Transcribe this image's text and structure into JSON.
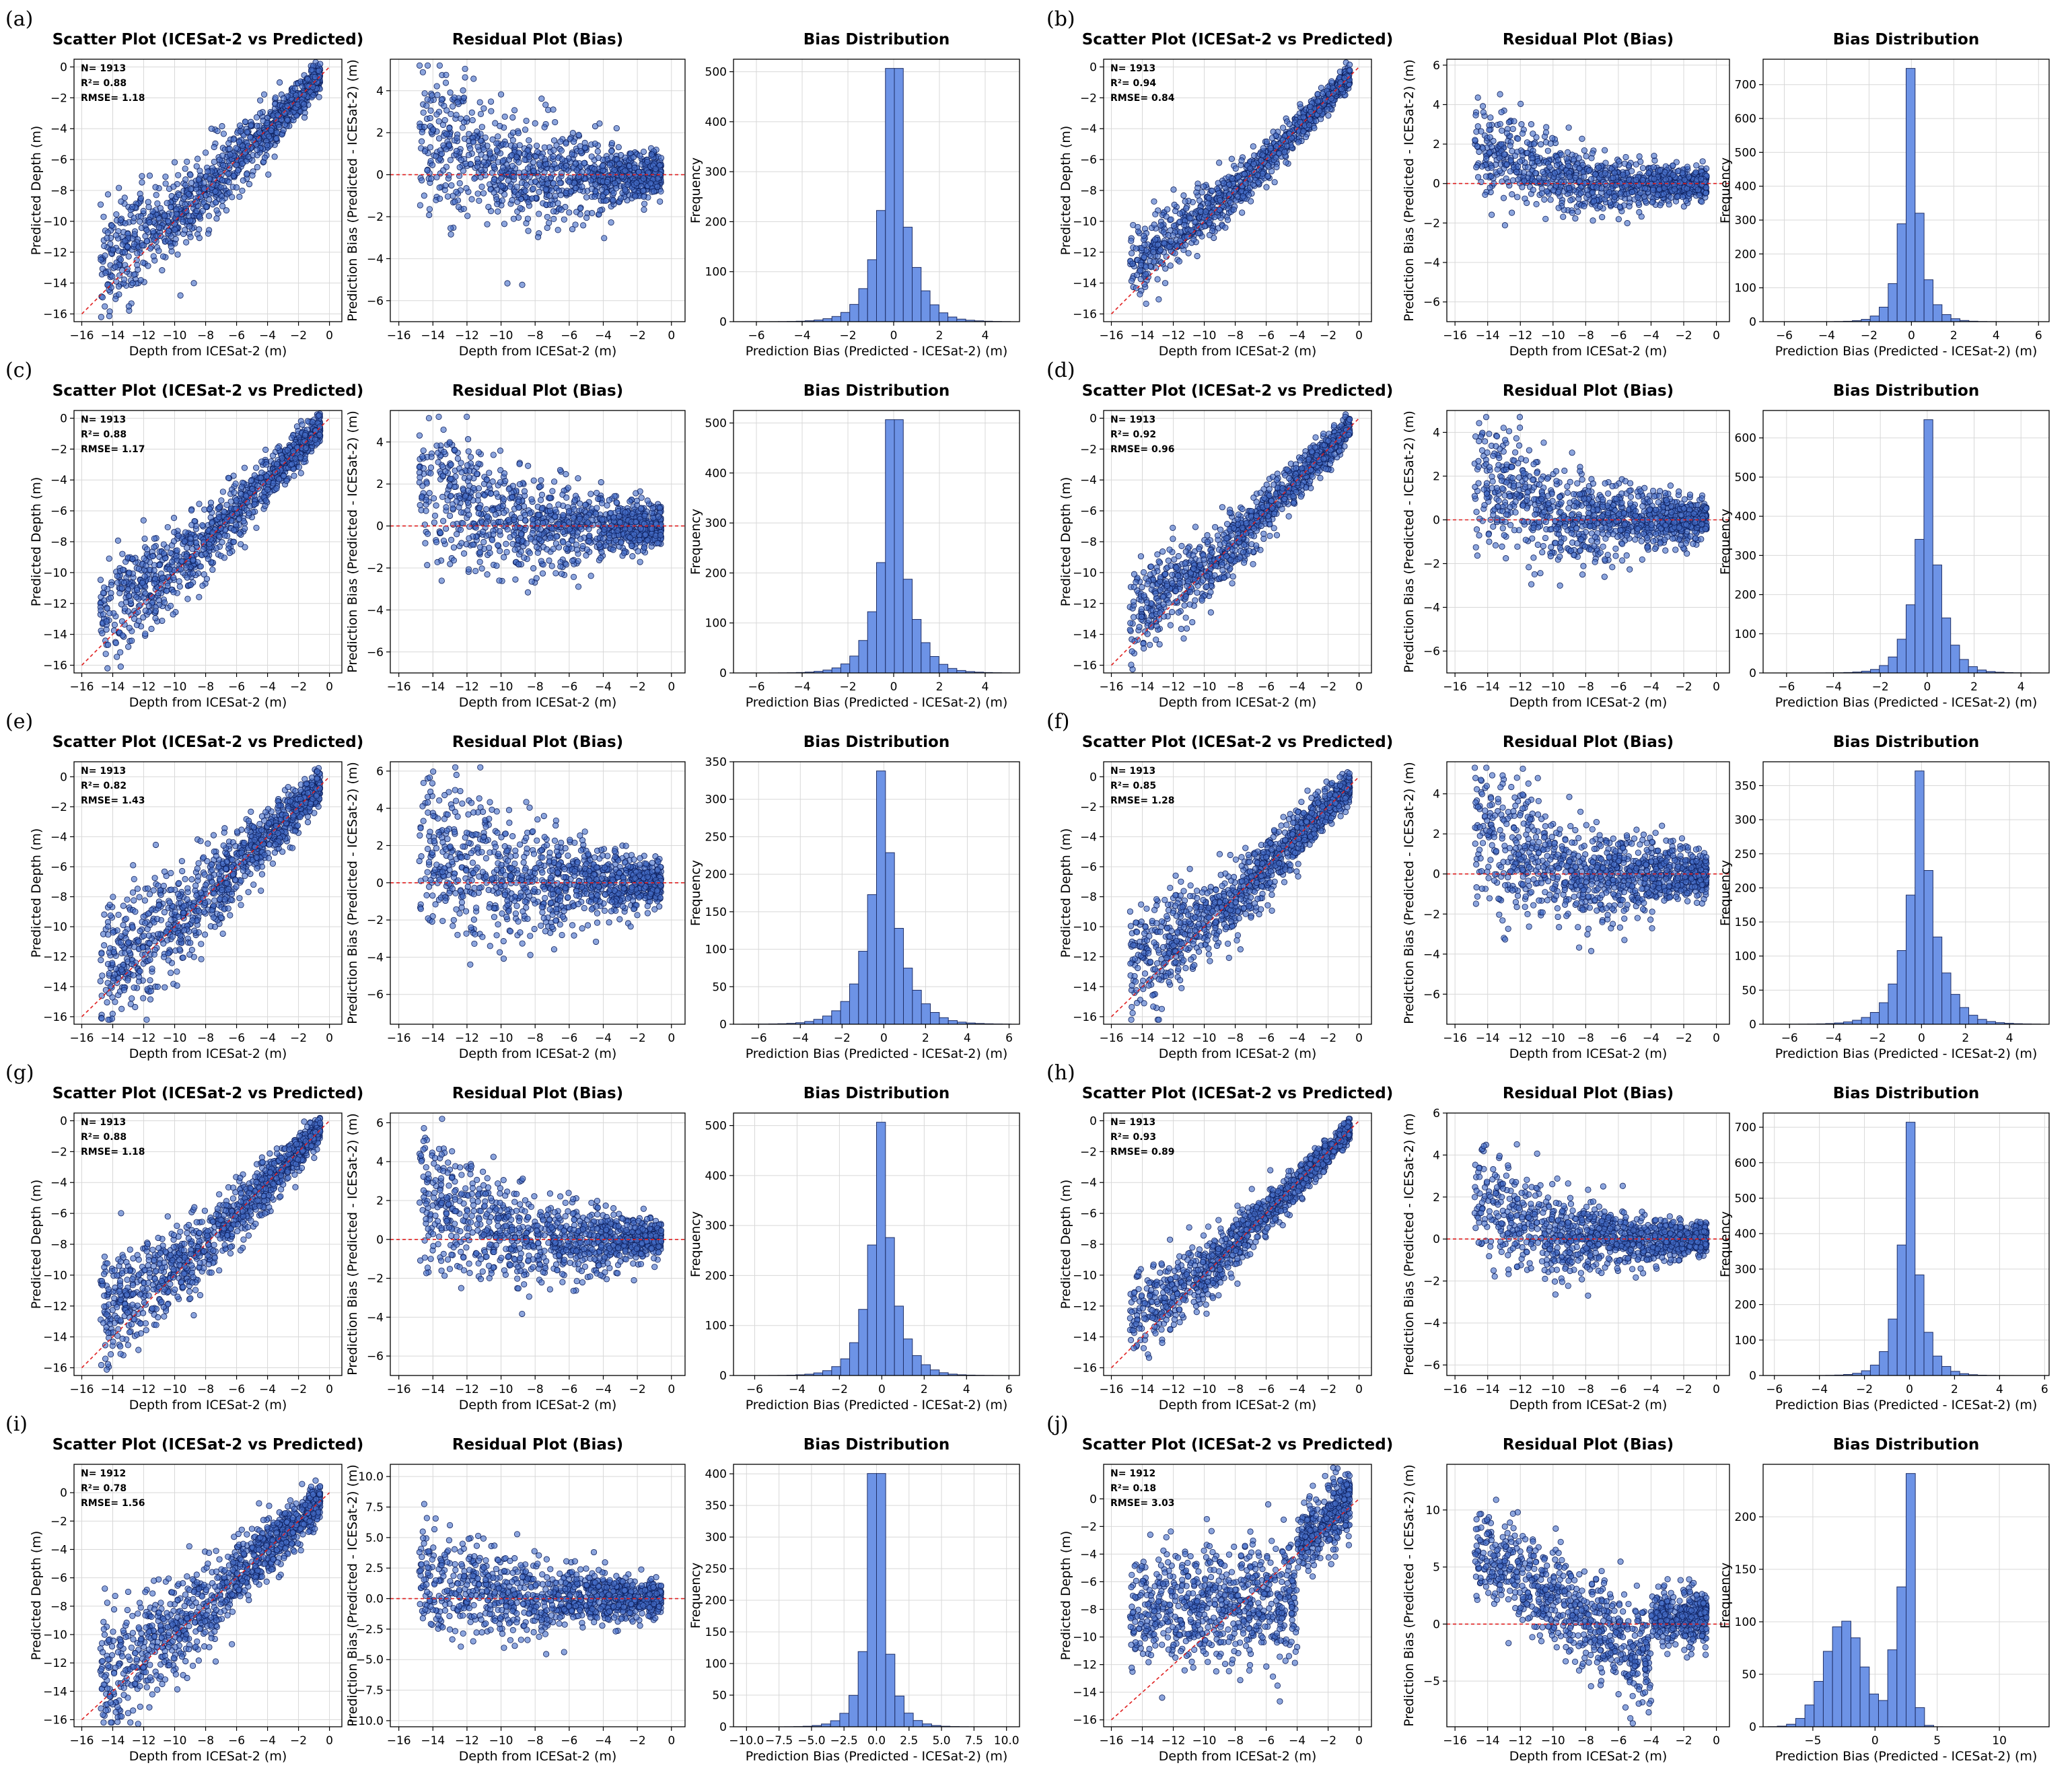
{
  "chart_data": [
    {
      "label": "(a)",
      "n": "N= 1913",
      "r2": "R²= 0.88",
      "rmse": "RMSE= 1.18",
      "rmse_value": 1.18,
      "resid_ylim": [
        -7,
        5.5
      ],
      "resid_ticks": [
        -6,
        -4,
        -2,
        0,
        2,
        4
      ],
      "hist_xlim": [
        -7,
        5.5
      ],
      "hist_xticks": [
        -6,
        -4,
        -2,
        0,
        2,
        4
      ],
      "hist_ylim": [
        0,
        525
      ],
      "hist_yticks": [
        0,
        100,
        200,
        300,
        400,
        500
      ],
      "scatter_ylim": [
        -16.5,
        0.5
      ],
      "scatter_yticks": [
        -16,
        -14,
        -12,
        -10,
        -8,
        -6,
        -4,
        -2,
        0
      ]
    },
    {
      "label": "(b)",
      "n": "N= 1913",
      "r2": "R²= 0.94",
      "rmse": "RMSE= 0.84",
      "rmse_value": 0.84,
      "resid_ylim": [
        -7,
        6.3
      ],
      "resid_ticks": [
        -6,
        -4,
        -2,
        0,
        2,
        4,
        6
      ],
      "hist_xlim": [
        -7,
        6.5
      ],
      "hist_xticks": [
        -6,
        -4,
        -2,
        0,
        2,
        4,
        6
      ],
      "hist_ylim": [
        0,
        775
      ],
      "hist_yticks": [
        0,
        100,
        200,
        300,
        400,
        500,
        600,
        700
      ],
      "scatter_ylim": [
        -16.5,
        0.5
      ],
      "scatter_yticks": [
        -16,
        -14,
        -12,
        -10,
        -8,
        -6,
        -4,
        -2,
        0
      ]
    },
    {
      "label": "(c)",
      "n": "N= 1913",
      "r2": "R²= 0.88",
      "rmse": "RMSE= 1.17",
      "rmse_value": 1.17,
      "resid_ylim": [
        -7,
        5.5
      ],
      "resid_ticks": [
        -6,
        -4,
        -2,
        0,
        2,
        4
      ],
      "hist_xlim": [
        -7,
        5.5
      ],
      "hist_xticks": [
        -6,
        -4,
        -2,
        0,
        2,
        4
      ],
      "hist_ylim": [
        0,
        525
      ],
      "hist_yticks": [
        0,
        100,
        200,
        300,
        400,
        500
      ],
      "scatter_ylim": [
        -16.5,
        0.5
      ],
      "scatter_yticks": [
        -16,
        -14,
        -12,
        -10,
        -8,
        -6,
        -4,
        -2,
        0
      ]
    },
    {
      "label": "(d)",
      "n": "N= 1913",
      "r2": "R²= 0.92",
      "rmse": "RMSE= 0.96",
      "rmse_value": 0.96,
      "resid_ylim": [
        -7,
        5
      ],
      "resid_ticks": [
        -6,
        -4,
        -2,
        0,
        2,
        4
      ],
      "hist_xlim": [
        -7,
        5.2
      ],
      "hist_xticks": [
        -6,
        -4,
        -2,
        0,
        2,
        4
      ],
      "hist_ylim": [
        0,
        670
      ],
      "hist_yticks": [
        0,
        100,
        200,
        300,
        400,
        500,
        600
      ],
      "scatter_ylim": [
        -16.5,
        0.5
      ],
      "scatter_yticks": [
        -16,
        -14,
        -12,
        -10,
        -8,
        -6,
        -4,
        -2,
        0
      ]
    },
    {
      "label": "(e)",
      "n": "N= 1913",
      "r2": "R²= 0.82",
      "rmse": "RMSE= 1.43",
      "rmse_value": 1.43,
      "resid_ylim": [
        -7.6,
        6.5
      ],
      "resid_ticks": [
        -6,
        -4,
        -2,
        0,
        2,
        4,
        6
      ],
      "hist_xlim": [
        -7.2,
        6.5
      ],
      "hist_xticks": [
        -6,
        -4,
        -2,
        0,
        2,
        4,
        6
      ],
      "hist_ylim": [
        0,
        350
      ],
      "hist_yticks": [
        0,
        50,
        100,
        150,
        200,
        250,
        300,
        350
      ],
      "scatter_ylim": [
        -16.5,
        1
      ],
      "scatter_yticks": [
        -16,
        -14,
        -12,
        -10,
        -8,
        -6,
        -4,
        -2,
        0
      ]
    },
    {
      "label": "(f)",
      "n": "N= 1913",
      "r2": "R²= 0.85",
      "rmse": "RMSE= 1.28",
      "rmse_value": 1.28,
      "resid_ylim": [
        -7.5,
        5.6
      ],
      "resid_ticks": [
        -6,
        -4,
        -2,
        0,
        2,
        4
      ],
      "hist_xlim": [
        -7.2,
        5.8
      ],
      "hist_xticks": [
        -6,
        -4,
        -2,
        0,
        2,
        4
      ],
      "hist_ylim": [
        0,
        385
      ],
      "hist_yticks": [
        0,
        50,
        100,
        150,
        200,
        250,
        300,
        350
      ],
      "scatter_ylim": [
        -16.5,
        1
      ],
      "scatter_yticks": [
        -16,
        -14,
        -12,
        -10,
        -8,
        -6,
        -4,
        -2,
        0
      ]
    },
    {
      "label": "(g)",
      "n": "N= 1913",
      "r2": "R²= 0.88",
      "rmse": "RMSE= 1.18",
      "rmse_value": 1.18,
      "resid_ylim": [
        -7,
        6.5
      ],
      "resid_ticks": [
        -6,
        -4,
        -2,
        0,
        2,
        4,
        6
      ],
      "hist_xlim": [
        -7,
        6.5
      ],
      "hist_xticks": [
        -6,
        -4,
        -2,
        0,
        2,
        4,
        6
      ],
      "hist_ylim": [
        0,
        525
      ],
      "hist_yticks": [
        0,
        100,
        200,
        300,
        400,
        500
      ],
      "scatter_ylim": [
        -16.5,
        0.5
      ],
      "scatter_yticks": [
        -16,
        -14,
        -12,
        -10,
        -8,
        -6,
        -4,
        -2,
        0
      ]
    },
    {
      "label": "(h)",
      "n": "N= 1913",
      "r2": "R²= 0.93",
      "rmse": "RMSE= 0.89",
      "rmse_value": 0.89,
      "resid_ylim": [
        -6.5,
        6
      ],
      "resid_ticks": [
        -6,
        -4,
        -2,
        0,
        2,
        4,
        6
      ],
      "hist_xlim": [
        -6.5,
        6.2
      ],
      "hist_xticks": [
        -6,
        -4,
        -2,
        0,
        2,
        4,
        6
      ],
      "hist_ylim": [
        0,
        740
      ],
      "hist_yticks": [
        0,
        100,
        200,
        300,
        400,
        500,
        600,
        700
      ],
      "scatter_ylim": [
        -16.5,
        0.5
      ],
      "scatter_yticks": [
        -16,
        -14,
        -12,
        -10,
        -8,
        -6,
        -4,
        -2,
        0
      ]
    },
    {
      "label": "(i)",
      "n": "N= 1912",
      "r2": "R²= 0.78",
      "rmse": "RMSE= 1.56",
      "rmse_value": 1.56,
      "resid_ylim": [
        -10.5,
        11
      ],
      "resid_ticks": [
        -10,
        -7.5,
        -5,
        -2.5,
        0,
        2.5,
        5,
        7.5,
        10
      ],
      "resid_fmt": "fixed1",
      "hist_xlim": [
        -11,
        11
      ],
      "hist_xticks": [
        -10,
        -7.5,
        -5,
        -2.5,
        0,
        2.5,
        5,
        7.5,
        10
      ],
      "hist_fmt": "fixed1",
      "hist_ylim": [
        0,
        415
      ],
      "hist_yticks": [
        0,
        50,
        100,
        150,
        200,
        250,
        300,
        350,
        400
      ],
      "scatter_ylim": [
        -16.5,
        2
      ],
      "scatter_yticks": [
        -16,
        -14,
        -12,
        -10,
        -8,
        -6,
        -4,
        -2,
        0
      ]
    },
    {
      "label": "(j)",
      "n": "N= 1912",
      "r2": "R²= 0.18",
      "rmse": "RMSE= 3.03",
      "rmse_value": 3.03,
      "resid_ylim": [
        -9,
        14
      ],
      "resid_ticks": [
        -5,
        0,
        5,
        10
      ],
      "hist_xlim": [
        -9,
        14
      ],
      "hist_xticks": [
        -5,
        0,
        5,
        10
      ],
      "hist_ylim": [
        0,
        250
      ],
      "hist_yticks": [
        0,
        50,
        100,
        150,
        200
      ],
      "scatter_ylim": [
        -16.5,
        2.5
      ],
      "scatter_yticks": [
        -16,
        -14,
        -12,
        -10,
        -8,
        -6,
        -4,
        -2,
        0
      ]
    }
  ],
  "titles": {
    "scatter": "Scatter Plot (ICESat-2 vs Predicted)",
    "residual": "Residual Plot (Bias)",
    "histogram": "Bias Distribution"
  },
  "axis_labels": {
    "depth_x": "Depth from ICESat-2 (m)",
    "pred_y": "Predicted Depth (m)",
    "bias_y": "Prediction Bias (Predicted - ICESat-2) (m)",
    "bias_x": "Prediction Bias (Predicted - ICESat-2) (m)",
    "freq_y": "Frequency"
  },
  "shared_axes": {
    "depth_xlim": [
      -16.5,
      0.8
    ],
    "depth_xticks": [
      -16,
      -14,
      -12,
      -10,
      -8,
      -6,
      -4,
      -2,
      0
    ]
  },
  "colors": {
    "points": "#466ec8",
    "bars": "#6d93e6",
    "reference": "#e02020"
  }
}
